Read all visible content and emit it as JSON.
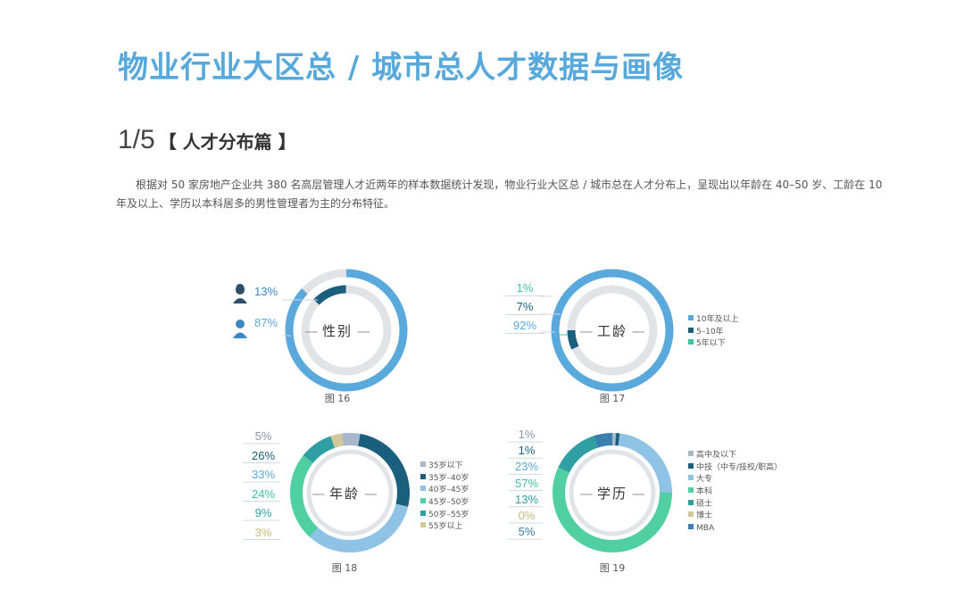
{
  "page": {
    "title": "物业行业大区总 / 城市总人才数据与画像",
    "section_number": "1/5",
    "section_title": "【 人才分布篇 】",
    "intro": "根据对 50 家房地产企业共 380 名高层管理人才近两年的样本数据统计发现，物业行业大区总 / 城市总在人才分布上，呈现出以年龄在 40–50 岁、工龄在 10 年及以上、学历以本科居多的男性管理者为主的分布特征。"
  },
  "colors": {
    "title": "#57a8db",
    "track": "#e1e3e6",
    "series": [
      "#a9b7cb",
      "#1b5f7e",
      "#8ec3e6",
      "#4fcfa2",
      "#2f9fa4",
      "#d4c89a",
      "#5f9ec9"
    ]
  },
  "chart_data": [
    {
      "type": "pie",
      "center_label": "性别",
      "caption": "图 16",
      "categories": [
        "女",
        "男"
      ],
      "values": [
        13,
        87
      ],
      "value_labels": [
        "13%",
        "87%"
      ],
      "icons": [
        "female-icon",
        "male-icon"
      ],
      "series_colors": [
        "#1b5f7e",
        "#5aa9dc"
      ],
      "label_colors": [
        "#3a87c5",
        "#5aa9dc"
      ]
    },
    {
      "type": "pie",
      "center_label": "工龄",
      "caption": "图 17",
      "categories": [
        "10年及以上",
        "5–10年",
        "5年以下"
      ],
      "values": [
        92,
        7,
        1
      ],
      "value_labels": [
        "1%",
        "7%",
        "92%"
      ],
      "label_values": [
        1,
        7,
        92
      ],
      "series_colors": [
        "#5aa9dc",
        "#1b5f7e",
        "#3cc3a6"
      ],
      "label_colors": [
        "#3cc3a6",
        "#1b5f7e",
        "#5aa9dc"
      ],
      "legend_placement": "right"
    },
    {
      "type": "pie",
      "center_label": "年龄",
      "caption": "图 18",
      "categories": [
        "35岁以下",
        "35岁–40岁",
        "40岁–45岁",
        "45岁–50岁",
        "50岁–55岁",
        "55岁以上"
      ],
      "values": [
        5,
        26,
        33,
        24,
        9,
        3
      ],
      "value_labels": [
        "5%",
        "26%",
        "33%",
        "24%",
        "9%",
        "3%"
      ],
      "series_colors": [
        "#a9b7cb",
        "#1b5f7e",
        "#8ec3e6",
        "#4fcfa2",
        "#2f9fa4",
        "#d4c89a"
      ],
      "label_colors": [
        "#8a97ab",
        "#1b5f7e",
        "#5aa9dc",
        "#3cc3a6",
        "#2f9fa4",
        "#c8b87a"
      ],
      "legend_placement": "right"
    },
    {
      "type": "pie",
      "center_label": "学历",
      "caption": "图 19",
      "categories": [
        "高中及以下",
        "中技（中专/技校/职高）",
        "大专",
        "本科",
        "硕士",
        "博士",
        "MBA"
      ],
      "values": [
        1,
        1,
        23,
        57,
        13,
        0,
        5
      ],
      "value_labels": [
        "1%",
        "1%",
        "23%",
        "57%",
        "13%",
        "0%",
        "5%"
      ],
      "series_colors": [
        "#a9b7cb",
        "#1b5f7e",
        "#8ec3e6",
        "#4fcfa2",
        "#2f9fa4",
        "#d4c89a",
        "#3a7fb0"
      ],
      "label_colors": [
        "#8a97ab",
        "#1b5f7e",
        "#5aa9dc",
        "#3cc3a6",
        "#2f9fa4",
        "#c8b87a",
        "#3a7fb0"
      ],
      "legend_placement": "right"
    }
  ]
}
